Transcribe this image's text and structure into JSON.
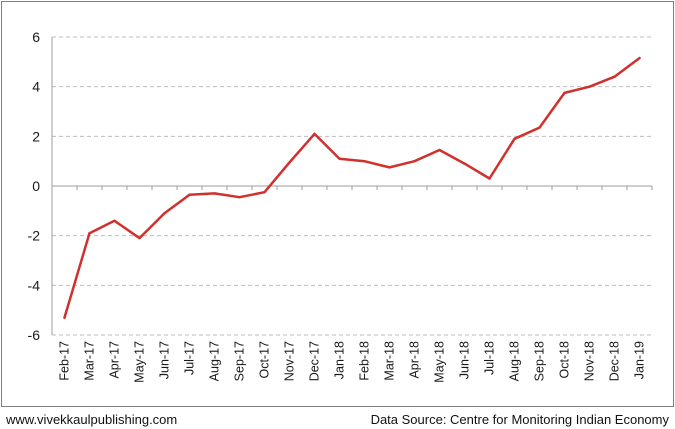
{
  "footer": {
    "left": "www.vivekkaulpublishing.com",
    "right": "Data Source: Centre for Monitoring Indian Economy"
  },
  "chart_data": {
    "type": "line",
    "title": "",
    "xlabel": "",
    "ylabel": "",
    "categories": [
      "Feb-17",
      "Mar-17",
      "Apr-17",
      "May-17",
      "Jun-17",
      "Jul-17",
      "Aug-17",
      "Sep-17",
      "Oct-17",
      "Nov-17",
      "Dec-17",
      "Jan-18",
      "Feb-18",
      "Mar-18",
      "Apr-18",
      "May-18",
      "Jun-18",
      "Jul-18",
      "Aug-18",
      "Sep-18",
      "Oct-18",
      "Nov-18",
      "Dec-18",
      "Jan-19"
    ],
    "series": [
      {
        "color": "#d0312d",
        "values": [
          -5.3,
          -1.9,
          -1.4,
          -2.1,
          -1.1,
          -0.35,
          -0.3,
          -0.45,
          -0.25,
          0.95,
          2.1,
          1.1,
          1.0,
          0.75,
          1.0,
          1.45,
          0.9,
          0.3,
          1.9,
          2.35,
          3.75,
          4.0,
          4.4,
          5.15
        ]
      }
    ],
    "ylim": [
      -6,
      6
    ],
    "yticks": [
      -6,
      -4,
      -2,
      0,
      2,
      4,
      6
    ],
    "grid": true,
    "grid_style": "dashed",
    "legend": "none"
  }
}
